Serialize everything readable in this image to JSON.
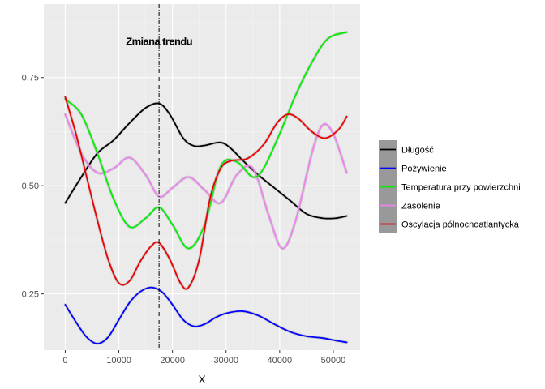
{
  "chart_data": {
    "type": "line",
    "title": "",
    "xlabel": "X",
    "ylabel": "",
    "xlim": [
      -4000,
      55000
    ],
    "ylim": [
      0.12,
      0.92
    ],
    "x_ticks": [
      0,
      10000,
      20000,
      30000,
      40000,
      50000
    ],
    "x_tick_labels": [
      "0",
      "10000",
      "20000",
      "30000",
      "40000",
      "50000"
    ],
    "y_ticks": [
      0.25,
      0.5,
      0.75
    ],
    "y_tick_labels": [
      "0.25",
      "0.50",
      "0.75"
    ],
    "grid": true,
    "legend_position": "right",
    "vline": {
      "x": 17500,
      "style": "dotdash",
      "color": "#000000"
    },
    "annotation": {
      "text": "Zmiana trendu",
      "x": 17500,
      "y": 0.835
    },
    "series": [
      {
        "name": "Długość",
        "color": "#000000",
        "x": [
          0,
          3000,
          6000,
          9000,
          12000,
          15000,
          17500,
          19500,
          22000,
          24000,
          26000,
          29000,
          31000,
          33000,
          36000,
          39000,
          42000,
          45000,
          48000,
          50500,
          52500
        ],
        "y": [
          0.46,
          0.52,
          0.575,
          0.605,
          0.645,
          0.68,
          0.69,
          0.665,
          0.61,
          0.592,
          0.593,
          0.6,
          0.585,
          0.56,
          0.525,
          0.495,
          0.465,
          0.435,
          0.425,
          0.425,
          0.43
        ]
      },
      {
        "name": "Pożywienie",
        "color": "#0000ff",
        "x": [
          0,
          2000,
          4000,
          6000,
          8000,
          10000,
          12000,
          14000,
          16000,
          18000,
          20000,
          22000,
          24000,
          26000,
          28000,
          30000,
          33000,
          36000,
          39000,
          42000,
          45000,
          48000,
          50500,
          52500
        ],
        "y": [
          0.225,
          0.185,
          0.15,
          0.135,
          0.15,
          0.19,
          0.23,
          0.255,
          0.265,
          0.255,
          0.225,
          0.19,
          0.175,
          0.18,
          0.195,
          0.205,
          0.21,
          0.2,
          0.18,
          0.162,
          0.152,
          0.148,
          0.142,
          0.138
        ]
      },
      {
        "name": "Temperatura przy powierzchni",
        "color": "#00ee00",
        "x": [
          0,
          3000,
          6000,
          9000,
          12000,
          15000,
          17500,
          20000,
          23000,
          26000,
          29000,
          32000,
          35000,
          37000,
          40000,
          43000,
          46000,
          49000,
          52500
        ],
        "y": [
          0.7,
          0.665,
          0.575,
          0.47,
          0.405,
          0.425,
          0.45,
          0.41,
          0.355,
          0.41,
          0.545,
          0.555,
          0.52,
          0.54,
          0.62,
          0.71,
          0.785,
          0.84,
          0.855
        ]
      },
      {
        "name": "Zasolenie",
        "color": "#ee82ee",
        "x": [
          0,
          3000,
          6000,
          9000,
          12000,
          15000,
          17500,
          20000,
          23000,
          26000,
          29000,
          32000,
          35000,
          38000,
          40500,
          43000,
          46000,
          48000,
          50000,
          52500
        ],
        "y": [
          0.665,
          0.575,
          0.53,
          0.54,
          0.565,
          0.525,
          0.475,
          0.495,
          0.52,
          0.49,
          0.46,
          0.525,
          0.54,
          0.43,
          0.355,
          0.42,
          0.575,
          0.64,
          0.62,
          0.53
        ]
      },
      {
        "name": "Oscylacja północnoatlantycka",
        "color": "#ee0000",
        "x": [
          0,
          2000,
          4000,
          6000,
          8000,
          10000,
          12000,
          14000,
          16000,
          17500,
          19500,
          21500,
          23000,
          25000,
          27000,
          29000,
          31000,
          34000,
          37000,
          39500,
          41500,
          43500,
          46000,
          48500,
          51000,
          52500
        ],
        "y": [
          0.705,
          0.62,
          0.52,
          0.42,
          0.33,
          0.275,
          0.28,
          0.325,
          0.36,
          0.368,
          0.33,
          0.275,
          0.265,
          0.33,
          0.47,
          0.54,
          0.558,
          0.563,
          0.595,
          0.645,
          0.665,
          0.655,
          0.625,
          0.61,
          0.63,
          0.66
        ]
      }
    ]
  }
}
